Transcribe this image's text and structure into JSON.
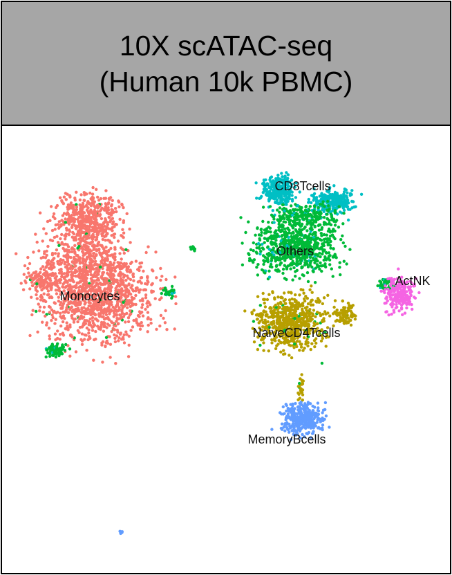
{
  "chart_data": {
    "type": "scatter",
    "title": "10X scATAC-seq",
    "subtitle": "(Human 10k PBMC)",
    "xlabel": "",
    "ylabel": "",
    "grid": false,
    "legend": "none",
    "clusters": [
      {
        "name": "Monocytes",
        "color": "#F8766D"
      },
      {
        "name": "CD8Tcells",
        "color": "#00BFC4"
      },
      {
        "name": "Others",
        "color": "#00BA38"
      },
      {
        "name": "NaiveCD4Tcells",
        "color": "#B79F00"
      },
      {
        "name": "ActNK",
        "color": "#F564E3"
      },
      {
        "name": "MemoryBcells",
        "color": "#619CFF"
      }
    ]
  }
}
